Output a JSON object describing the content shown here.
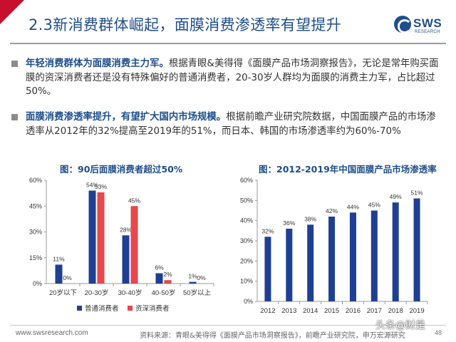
{
  "header": {
    "title": "2.3新消费群体崛起，面膜消费渗透率有望提升",
    "logo_text": "SWS",
    "logo_sub": "RESEARCH"
  },
  "bullets": [
    {
      "lead": "年轻消费群体为面膜消费主力军。",
      "text": "根据青眼&美得得《面膜产品市场洞察报告》，无论是常年购买面膜的资深消费者还是没有特殊偏好的普通消费者，20-30岁人群均为面膜的消费主力军，占比超过50%。"
    },
    {
      "lead": "面膜消费渗透率提升，有望扩大国内市场规模。",
      "text": "根据前瞻产业研究院数据，中国面膜产品的市场渗透率从2012年的32%提高至2019年的51%，而日本、韩国的市场渗透率约为60%-70%"
    }
  ],
  "chart_data": [
    {
      "type": "bar",
      "title": "图：90后面膜消费者超过50%",
      "categories": [
        "20岁以下",
        "20-30岁",
        "30-40岁",
        "40-50岁",
        "50岁以上"
      ],
      "series": [
        {
          "name": "普通消费者",
          "values": [
            11,
            54,
            28,
            6,
            1
          ],
          "labels": [
            "11%",
            "54%",
            "28%",
            "6%",
            "1%"
          ],
          "color": "#1f3f93"
        },
        {
          "name": "资深消费者",
          "values": [
            0,
            53,
            45,
            2,
            0
          ],
          "labels": [
            "0%",
            "53%",
            "45%",
            "2%",
            "0%"
          ],
          "color": "#e8474b"
        }
      ],
      "ylim": [
        0,
        60
      ],
      "yticks": [
        "0%",
        "15%",
        "30%",
        "45%",
        "60%"
      ],
      "ytick_values": [
        0,
        15,
        30,
        45,
        60
      ],
      "legend": "bottom"
    },
    {
      "type": "bar",
      "title": "图：2012-2019年中国面膜产品市场渗透率",
      "categories": [
        "2012",
        "2013",
        "2014",
        "2015",
        "2016",
        "2017",
        "2018",
        "2019"
      ],
      "series": [
        {
          "values": [
            32,
            36,
            38,
            42,
            44,
            45,
            49,
            51
          ],
          "labels": [
            "32%",
            "36%",
            "38%",
            "42%",
            "44%",
            "45%",
            "49%",
            "51%"
          ],
          "color": "#1f3f93"
        }
      ],
      "ylim": [
        0,
        60
      ],
      "yticks": [
        "0%",
        "10%",
        "20%",
        "30%",
        "40%",
        "50%",
        "60%"
      ],
      "ytick_values": [
        0,
        10,
        20,
        30,
        40,
        50,
        60
      ]
    }
  ],
  "footer": {
    "url": "www.swsresearch.com",
    "source": "资料来源：青眼&美得得《面膜产品市场洞察报告》，前瞻产业研究院，申万宏源研究",
    "page": "48",
    "watermark": "头条@财是"
  },
  "colors": {
    "title_blue": "#1f4e8c",
    "accent_red": "#c8102e",
    "bar_blue": "#1f3f93",
    "bar_red": "#e8474b"
  }
}
